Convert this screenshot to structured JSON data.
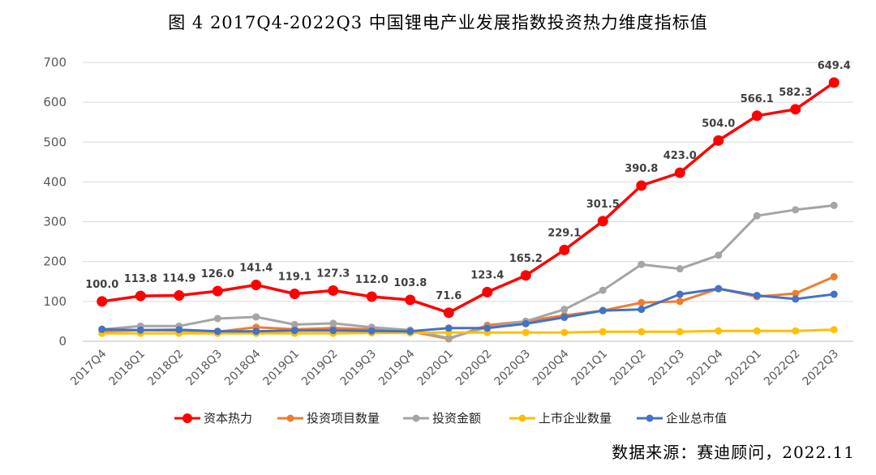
{
  "title": "图 4   2017Q4-2022Q3 中国锂电产业发展指数投资热力维度指标值",
  "source": "数据来源：赛迪顾问，2022.11",
  "chart_data": {
    "type": "line",
    "categories": [
      "2017Q4",
      "2018Q1",
      "2018Q2",
      "2018Q3",
      "2018Q4",
      "2019Q1",
      "2019Q2",
      "2019Q3",
      "2019Q4",
      "2020Q1",
      "2020Q2",
      "2020Q3",
      "2020Q4",
      "2021Q1",
      "2021Q2",
      "2021Q3",
      "2021Q4",
      "2022Q1",
      "2022Q2",
      "2022Q3"
    ],
    "ylim": [
      0,
      700
    ],
    "yticks": [
      "0",
      "100",
      "200",
      "300",
      "400",
      "500",
      "600",
      "700"
    ],
    "grid": true,
    "legend_position": "bottom",
    "series": [
      {
        "name": "资本热力",
        "color": "#FF0000",
        "values": [
          100.0,
          113.8,
          114.9,
          126.0,
          141.4,
          119.1,
          127.3,
          112.0,
          103.8,
          71.6,
          123.4,
          165.2,
          229.1,
          301.5,
          390.8,
          423.0,
          504.0,
          566.1,
          582.3,
          649.4
        ],
        "labels": [
          "100.0",
          "113.8",
          "114.9",
          "126.0",
          "141.4",
          "119.1",
          "127.3",
          "112.0",
          "103.8",
          "71.6",
          "123.4",
          "165.2",
          "229.1",
          "301.5",
          "390.8",
          "423.0",
          "504.0",
          "566.1",
          "582.3",
          "649.4"
        ]
      },
      {
        "name": "投资项目数量",
        "color": "#ED7D31",
        "values": [
          25,
          28,
          27,
          24,
          35,
          30,
          33,
          30,
          25,
          6,
          40,
          50,
          65,
          77,
          97,
          100,
          132,
          112,
          120,
          162
        ]
      },
      {
        "name": "投资金额",
        "color": "#A5A5A5",
        "values": [
          30,
          38,
          38,
          57,
          61,
          42,
          45,
          35,
          28,
          8,
          35,
          50,
          80,
          128,
          193,
          182,
          216,
          315,
          330,
          341
        ]
      },
      {
        "name": "上市企业数量",
        "color": "#FFC000",
        "values": [
          20,
          20,
          20,
          20,
          20,
          20,
          20,
          21,
          21,
          22,
          22,
          22,
          22,
          24,
          24,
          24,
          26,
          26,
          26,
          29
        ]
      },
      {
        "name": "企业总市值",
        "color": "#4472C4",
        "values": [
          30,
          28,
          29,
          25,
          25,
          27,
          27,
          26,
          25,
          33,
          33,
          44,
          60,
          77,
          80,
          118,
          132,
          115,
          106,
          118
        ]
      }
    ]
  }
}
